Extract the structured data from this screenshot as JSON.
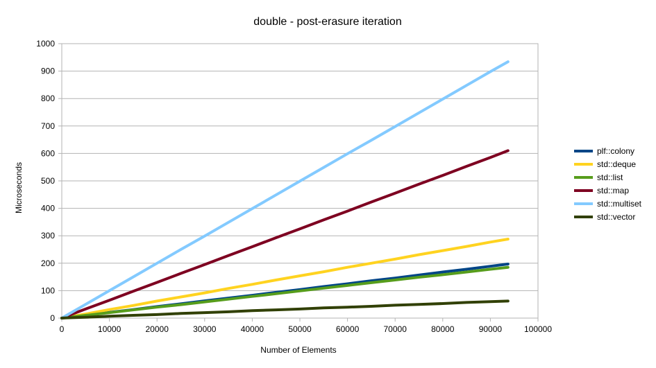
{
  "chart_data": {
    "type": "line",
    "title": "double - post-erasure iteration",
    "xlabel": "Number of Elements",
    "ylabel": "Microseconds",
    "xlim": [
      0,
      100000
    ],
    "ylim": [
      0,
      1000
    ],
    "xticks": [
      0,
      10000,
      20000,
      30000,
      40000,
      50000,
      60000,
      70000,
      80000,
      90000,
      100000
    ],
    "yticks": [
      0,
      100,
      200,
      300,
      400,
      500,
      600,
      700,
      800,
      900,
      1000
    ],
    "xtick_labels": [
      "0",
      "10000",
      "20000",
      "30000",
      "40000",
      "50000",
      "60000",
      "70000",
      "80000",
      "90000",
      "100000"
    ],
    "ytick_labels": [
      "0",
      "100",
      "200",
      "300",
      "400",
      "500",
      "600",
      "700",
      "800",
      "900",
      "1000"
    ],
    "grid": true,
    "legend_position": "right",
    "x": [
      0,
      1000,
      5000,
      10000,
      15000,
      20000,
      25000,
      30000,
      35000,
      40000,
      45000,
      50000,
      55000,
      60000,
      65000,
      70000,
      75000,
      80000,
      85000,
      90000,
      93700
    ],
    "series": [
      {
        "name": "plf::colony",
        "color": "#004586",
        "values": [
          0,
          2,
          10,
          21,
          31,
          42,
          52,
          63,
          73,
          83,
          94,
          104,
          115,
          125,
          136,
          146,
          157,
          168,
          178,
          189,
          197
        ]
      },
      {
        "name": "std::deque",
        "color": "#ffd320",
        "values": [
          0,
          3,
          15,
          31,
          46,
          62,
          77,
          92,
          108,
          123,
          139,
          154,
          169,
          185,
          200,
          215,
          231,
          246,
          261,
          277,
          288
        ]
      },
      {
        "name": "std::list",
        "color": "#579d1c",
        "values": [
          0,
          2,
          10,
          20,
          30,
          40,
          49,
          59,
          69,
          79,
          89,
          99,
          109,
          119,
          129,
          139,
          149,
          158,
          168,
          178,
          185
        ]
      },
      {
        "name": "std::map",
        "color": "#7e0021",
        "values": [
          0,
          7,
          33,
          65,
          98,
          130,
          163,
          195,
          228,
          260,
          293,
          325,
          358,
          390,
          423,
          455,
          488,
          520,
          553,
          585,
          610
        ]
      },
      {
        "name": "std::multiset",
        "color": "#83caff",
        "values": [
          0,
          10,
          50,
          100,
          150,
          200,
          250,
          299,
          349,
          399,
          449,
          499,
          549,
          599,
          648,
          698,
          748,
          798,
          848,
          898,
          934
        ]
      },
      {
        "name": "std::vector",
        "color": "#314004",
        "values": [
          0,
          1,
          3,
          7,
          10,
          13,
          17,
          20,
          23,
          27,
          30,
          33,
          37,
          40,
          43,
          47,
          50,
          53,
          57,
          60,
          62
        ]
      }
    ]
  }
}
